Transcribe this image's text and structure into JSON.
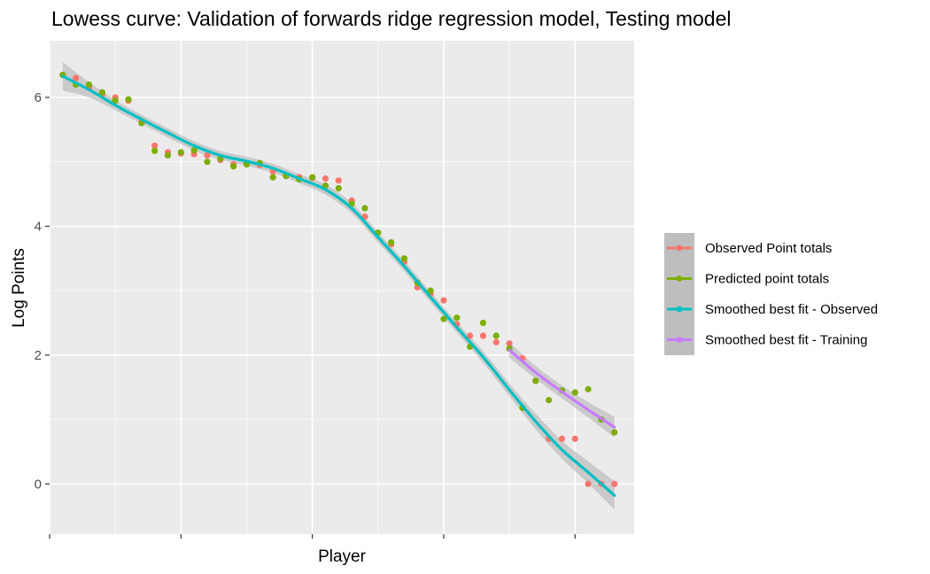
{
  "chart_data": {
    "type": "scatter",
    "title": "Lowess curve: Validation of forwards ridge regression model, Testing model",
    "xlabel": "Player",
    "ylabel": "Log Points",
    "xlim": [
      0,
      44.5
    ],
    "ylim": [
      -0.78,
      6.88
    ],
    "x_ticks": [
      0,
      10,
      20,
      30,
      40
    ],
    "x_tick_labels": [
      "",
      "",
      "",
      "",
      ""
    ],
    "y_ticks": [
      0,
      2,
      4,
      6
    ],
    "y_tick_labels": [
      "0",
      "2",
      "4",
      "6"
    ],
    "grid": true,
    "legend_position": "right",
    "colors": {
      "panel": "#EBEBEB",
      "grid": "#FFFFFF",
      "observed": "#F8766D",
      "predicted": "#7CAE00",
      "smooth_observed": "#00BFC4",
      "smooth_training": "#C77CFF",
      "band": "#999999",
      "legend_key": "#BEBEBE"
    },
    "series": [
      {
        "name": "Observed Point totals",
        "kind": "points",
        "x": [
          1,
          2,
          3,
          4,
          5,
          6,
          7,
          8,
          9,
          10,
          11,
          12,
          13,
          14,
          15,
          16,
          17,
          18,
          19,
          20,
          21,
          22,
          23,
          24,
          25,
          26,
          27,
          28,
          29,
          30,
          31,
          32,
          33,
          34,
          35,
          36,
          37,
          38,
          39,
          40,
          41,
          42,
          43
        ],
        "y": [
          6.35,
          6.3,
          6.15,
          6.05,
          6.0,
          5.95,
          5.62,
          5.25,
          5.15,
          5.13,
          5.12,
          5.1,
          5.03,
          4.96,
          4.97,
          4.95,
          4.85,
          4.78,
          4.76,
          4.75,
          4.74,
          4.71,
          4.4,
          4.15,
          3.9,
          3.72,
          3.45,
          3.05,
          2.95,
          2.85,
          2.48,
          2.3,
          2.3,
          2.2,
          2.18,
          1.95,
          1.6,
          0.7,
          0.7,
          0.7,
          0.0,
          0.0,
          0.0
        ]
      },
      {
        "name": "Predicted point totals",
        "kind": "points",
        "x": [
          1,
          2,
          3,
          4,
          5,
          6,
          7,
          8,
          9,
          10,
          11,
          12,
          13,
          14,
          15,
          16,
          17,
          18,
          19,
          20,
          21,
          22,
          23,
          24,
          25,
          26,
          27,
          28,
          29,
          30,
          31,
          32,
          33,
          34,
          35,
          36,
          37,
          38,
          39,
          40,
          41,
          42,
          43
        ],
        "y": [
          6.35,
          6.2,
          6.2,
          6.08,
          5.95,
          5.97,
          5.6,
          5.17,
          5.1,
          5.15,
          5.18,
          5.0,
          5.05,
          4.93,
          4.96,
          4.98,
          4.76,
          4.78,
          4.73,
          4.76,
          4.63,
          4.59,
          4.35,
          4.28,
          3.9,
          3.75,
          3.5,
          3.12,
          3.0,
          2.56,
          2.58,
          2.13,
          2.5,
          2.3,
          2.1,
          1.18,
          1.6,
          1.3,
          1.45,
          1.42,
          1.47,
          1.0,
          0.8
        ]
      },
      {
        "name": "Smoothed best fit - Observed",
        "kind": "smooth",
        "x": [
          1,
          3,
          5,
          7,
          9,
          11,
          13,
          15,
          17,
          19,
          21,
          23,
          25,
          27,
          29,
          31,
          33,
          35,
          37,
          39,
          41,
          43
        ],
        "y": [
          6.33,
          6.12,
          5.88,
          5.66,
          5.45,
          5.25,
          5.1,
          5.01,
          4.9,
          4.74,
          4.57,
          4.28,
          3.83,
          3.38,
          2.9,
          2.43,
          1.97,
          1.46,
          0.97,
          0.53,
          0.18,
          -0.18
        ],
        "band": [
          0.22,
          0.12,
          0.08,
          0.07,
          0.07,
          0.07,
          0.07,
          0.07,
          0.07,
          0.07,
          0.08,
          0.08,
          0.08,
          0.08,
          0.08,
          0.08,
          0.09,
          0.1,
          0.12,
          0.14,
          0.17,
          0.22
        ]
      },
      {
        "name": "Smoothed best fit - Training",
        "kind": "smooth",
        "x": [
          35,
          37,
          39,
          41,
          43
        ],
        "y": [
          2.08,
          1.73,
          1.43,
          1.15,
          0.88
        ],
        "band": [
          0.12,
          0.1,
          0.1,
          0.12,
          0.16
        ]
      }
    ]
  }
}
